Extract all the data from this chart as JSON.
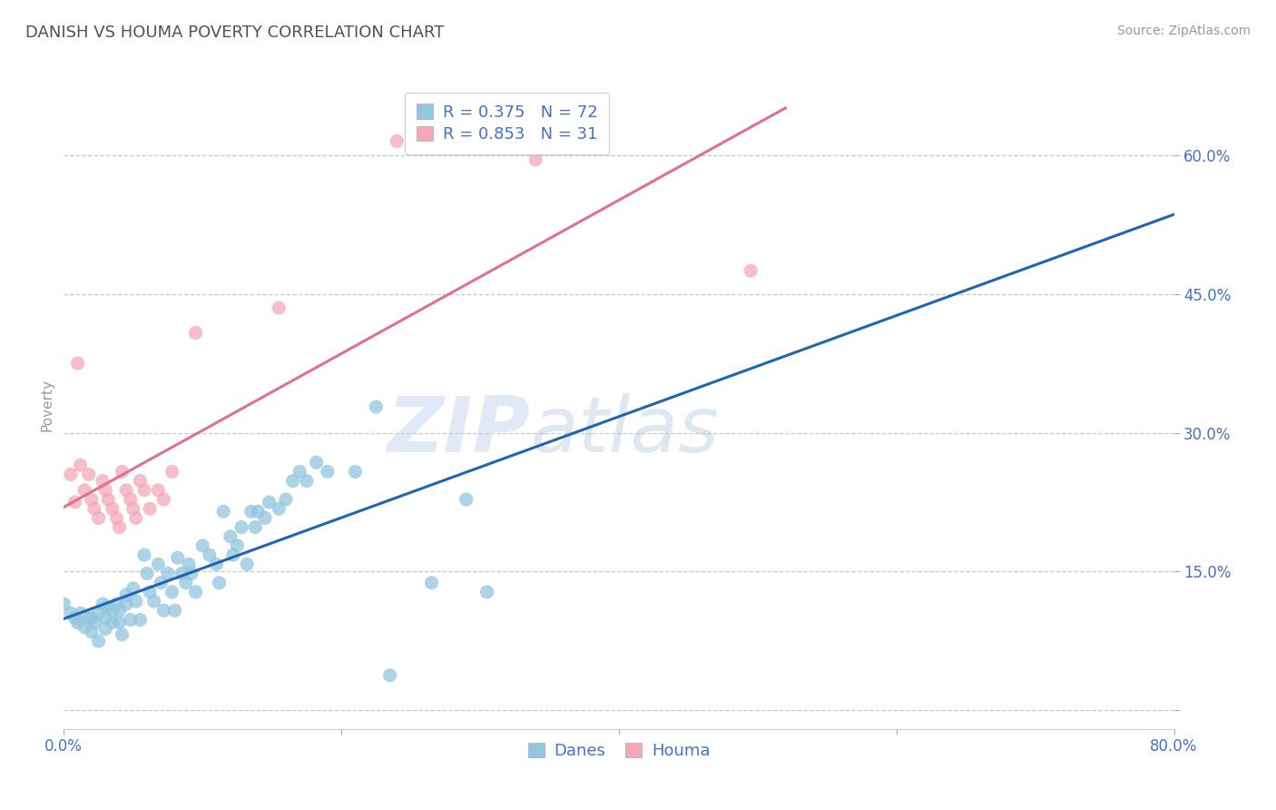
{
  "title": "DANISH VS HOUMA POVERTY CORRELATION CHART",
  "source_text": "Source: ZipAtlas.com",
  "ylabel": "Poverty",
  "xlim": [
    0,
    0.8
  ],
  "ylim": [
    -0.02,
    0.68
  ],
  "xticks": [
    0.0,
    0.2,
    0.4,
    0.6,
    0.8
  ],
  "xtick_labels_show": [
    "0.0%",
    "",
    "",
    "",
    "80.0%"
  ],
  "yticks": [
    0.0,
    0.15,
    0.3,
    0.45,
    0.6
  ],
  "ytick_labels": [
    "",
    "15.0%",
    "30.0%",
    "45.0%",
    "60.0%"
  ],
  "danes_color": "#92c5de",
  "houma_color": "#f4a7b9",
  "danes_line_color": "#2166ac",
  "houma_line_color": "#e07090",
  "danes_R": 0.375,
  "danes_N": 72,
  "houma_R": 0.853,
  "houma_N": 31,
  "danes_scatter": [
    [
      0.0,
      0.115
    ],
    [
      0.005,
      0.105
    ],
    [
      0.008,
      0.1
    ],
    [
      0.01,
      0.095
    ],
    [
      0.012,
      0.105
    ],
    [
      0.015,
      0.09
    ],
    [
      0.018,
      0.1
    ],
    [
      0.02,
      0.1
    ],
    [
      0.02,
      0.085
    ],
    [
      0.022,
      0.095
    ],
    [
      0.025,
      0.105
    ],
    [
      0.025,
      0.075
    ],
    [
      0.028,
      0.115
    ],
    [
      0.03,
      0.1
    ],
    [
      0.03,
      0.088
    ],
    [
      0.032,
      0.112
    ],
    [
      0.035,
      0.108
    ],
    [
      0.035,
      0.095
    ],
    [
      0.038,
      0.115
    ],
    [
      0.04,
      0.108
    ],
    [
      0.04,
      0.095
    ],
    [
      0.042,
      0.082
    ],
    [
      0.045,
      0.125
    ],
    [
      0.045,
      0.115
    ],
    [
      0.048,
      0.098
    ],
    [
      0.05,
      0.132
    ],
    [
      0.052,
      0.118
    ],
    [
      0.055,
      0.098
    ],
    [
      0.058,
      0.168
    ],
    [
      0.06,
      0.148
    ],
    [
      0.062,
      0.128
    ],
    [
      0.065,
      0.118
    ],
    [
      0.068,
      0.158
    ],
    [
      0.07,
      0.138
    ],
    [
      0.072,
      0.108
    ],
    [
      0.075,
      0.148
    ],
    [
      0.078,
      0.128
    ],
    [
      0.08,
      0.108
    ],
    [
      0.082,
      0.165
    ],
    [
      0.085,
      0.148
    ],
    [
      0.088,
      0.138
    ],
    [
      0.09,
      0.158
    ],
    [
      0.092,
      0.148
    ],
    [
      0.095,
      0.128
    ],
    [
      0.1,
      0.178
    ],
    [
      0.105,
      0.168
    ],
    [
      0.11,
      0.158
    ],
    [
      0.112,
      0.138
    ],
    [
      0.115,
      0.215
    ],
    [
      0.12,
      0.188
    ],
    [
      0.122,
      0.168
    ],
    [
      0.125,
      0.178
    ],
    [
      0.128,
      0.198
    ],
    [
      0.132,
      0.158
    ],
    [
      0.135,
      0.215
    ],
    [
      0.138,
      0.198
    ],
    [
      0.14,
      0.215
    ],
    [
      0.145,
      0.208
    ],
    [
      0.148,
      0.225
    ],
    [
      0.155,
      0.218
    ],
    [
      0.16,
      0.228
    ],
    [
      0.165,
      0.248
    ],
    [
      0.17,
      0.258
    ],
    [
      0.175,
      0.248
    ],
    [
      0.182,
      0.268
    ],
    [
      0.19,
      0.258
    ],
    [
      0.21,
      0.258
    ],
    [
      0.225,
      0.328
    ],
    [
      0.235,
      0.038
    ],
    [
      0.265,
      0.138
    ],
    [
      0.29,
      0.228
    ],
    [
      0.305,
      0.128
    ]
  ],
  "houma_scatter": [
    [
      0.005,
      0.255
    ],
    [
      0.008,
      0.225
    ],
    [
      0.01,
      0.375
    ],
    [
      0.012,
      0.265
    ],
    [
      0.015,
      0.238
    ],
    [
      0.018,
      0.255
    ],
    [
      0.02,
      0.228
    ],
    [
      0.022,
      0.218
    ],
    [
      0.025,
      0.208
    ],
    [
      0.028,
      0.248
    ],
    [
      0.03,
      0.238
    ],
    [
      0.032,
      0.228
    ],
    [
      0.035,
      0.218
    ],
    [
      0.038,
      0.208
    ],
    [
      0.04,
      0.198
    ],
    [
      0.042,
      0.258
    ],
    [
      0.045,
      0.238
    ],
    [
      0.048,
      0.228
    ],
    [
      0.05,
      0.218
    ],
    [
      0.052,
      0.208
    ],
    [
      0.055,
      0.248
    ],
    [
      0.058,
      0.238
    ],
    [
      0.062,
      0.218
    ],
    [
      0.068,
      0.238
    ],
    [
      0.072,
      0.228
    ],
    [
      0.078,
      0.258
    ],
    [
      0.095,
      0.408
    ],
    [
      0.155,
      0.435
    ],
    [
      0.24,
      0.615
    ],
    [
      0.34,
      0.595
    ],
    [
      0.495,
      0.475
    ]
  ],
  "watermark_zip": "ZIP",
  "watermark_atlas": "atlas",
  "background_color": "#ffffff",
  "grid_color": "#c8c8d0",
  "legend_fontsize": 13,
  "title_fontsize": 13,
  "tick_fontsize": 12,
  "ylabel_fontsize": 11,
  "axis_label_color": "#4472c4",
  "title_color": "#505060"
}
